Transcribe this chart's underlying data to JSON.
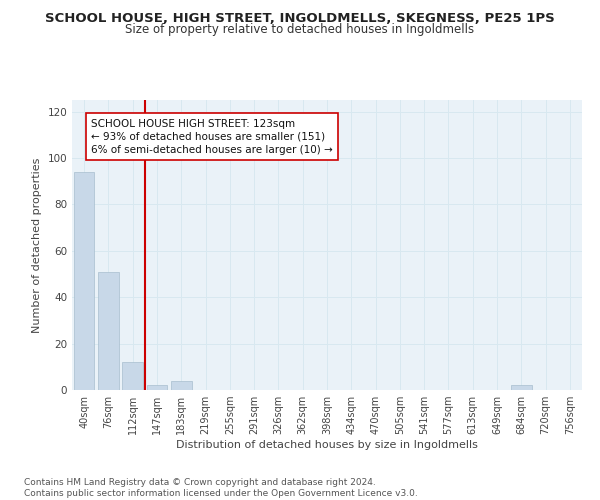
{
  "title": "SCHOOL HOUSE, HIGH STREET, INGOLDMELLS, SKEGNESS, PE25 1PS",
  "subtitle": "Size of property relative to detached houses in Ingoldmells",
  "xlabel": "Distribution of detached houses by size in Ingoldmells",
  "ylabel": "Number of detached properties",
  "bar_labels": [
    "40sqm",
    "76sqm",
    "112sqm",
    "147sqm",
    "183sqm",
    "219sqm",
    "255sqm",
    "291sqm",
    "326sqm",
    "362sqm",
    "398sqm",
    "434sqm",
    "470sqm",
    "505sqm",
    "541sqm",
    "577sqm",
    "613sqm",
    "649sqm",
    "684sqm",
    "720sqm",
    "756sqm"
  ],
  "bar_values": [
    94,
    51,
    12,
    2,
    4,
    0,
    0,
    0,
    0,
    0,
    0,
    0,
    0,
    0,
    0,
    0,
    0,
    0,
    2,
    0,
    0
  ],
  "bar_color": "#c8d8e8",
  "bar_edge_color": "#a8bece",
  "vline_x": 2.5,
  "vline_color": "#cc0000",
  "annotation_text": "SCHOOL HOUSE HIGH STREET: 123sqm\n← 93% of detached houses are smaller (151)\n6% of semi-detached houses are larger (10) →",
  "annotation_box_color": "#ffffff",
  "annotation_box_edge": "#cc0000",
  "ylim": [
    0,
    125
  ],
  "yticks": [
    0,
    20,
    40,
    60,
    80,
    100,
    120
  ],
  "grid_color": "#d8e8f0",
  "bg_color": "#eaf2f8",
  "fig_color": "#ffffff",
  "footer": "Contains HM Land Registry data © Crown copyright and database right 2024.\nContains public sector information licensed under the Open Government Licence v3.0.",
  "title_fontsize": 9.5,
  "subtitle_fontsize": 8.5,
  "footer_fontsize": 6.5,
  "axis_label_fontsize": 8,
  "tick_fontsize": 7
}
